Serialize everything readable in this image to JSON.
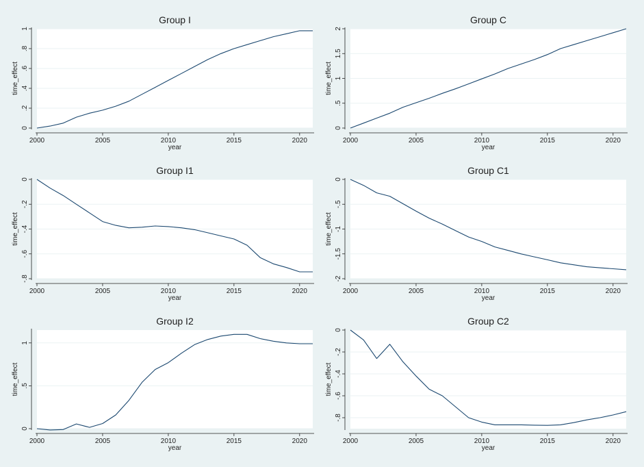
{
  "chart_data": [
    {
      "type": "line",
      "title": "Group I",
      "xlabel": "year",
      "ylabel": "time_effect",
      "xlim": [
        2000,
        2021
      ],
      "ylim": [
        0,
        1
      ],
      "xticks": [
        2000,
        2005,
        2010,
        2015,
        2020
      ],
      "xtick_labels": [
        "2000",
        "2005",
        "2010",
        "2015",
        "2020"
      ],
      "yticks": [
        0,
        0.2,
        0.4,
        0.6,
        0.8,
        1
      ],
      "ytick_labels": [
        "0",
        ".2",
        ".4",
        ".6",
        ".8",
        "1"
      ],
      "grid": true,
      "x": [
        2000,
        2001,
        2002,
        2003,
        2004,
        2005,
        2006,
        2007,
        2008,
        2009,
        2010,
        2011,
        2012,
        2013,
        2014,
        2015,
        2016,
        2017,
        2018,
        2019,
        2020,
        2021
      ],
      "series": [
        {
          "values": [
            0,
            0.02,
            0.05,
            0.11,
            0.15,
            0.18,
            0.22,
            0.27,
            0.34,
            0.41,
            0.48,
            0.55,
            0.62,
            0.69,
            0.75,
            0.8,
            0.84,
            0.88,
            0.92,
            0.95,
            0.98,
            0.98
          ]
        }
      ]
    },
    {
      "type": "line",
      "title": "Group C",
      "xlabel": "year",
      "ylabel": "time_effect",
      "xlim": [
        2000,
        2021
      ],
      "ylim": [
        0,
        2
      ],
      "xticks": [
        2000,
        2005,
        2010,
        2015,
        2020
      ],
      "xtick_labels": [
        "2000",
        "2005",
        "2010",
        "2015",
        "2020"
      ],
      "yticks": [
        0,
        0.5,
        1,
        1.5,
        2
      ],
      "ytick_labels": [
        "0",
        ".5",
        "1",
        "1.5",
        "2"
      ],
      "grid": true,
      "x": [
        2000,
        2001,
        2002,
        2003,
        2004,
        2005,
        2006,
        2007,
        2008,
        2009,
        2010,
        2011,
        2012,
        2013,
        2014,
        2015,
        2016,
        2017,
        2018,
        2019,
        2020,
        2021
      ],
      "series": [
        {
          "values": [
            0,
            0.1,
            0.2,
            0.3,
            0.42,
            0.51,
            0.6,
            0.7,
            0.79,
            0.89,
            0.99,
            1.09,
            1.2,
            1.29,
            1.38,
            1.48,
            1.6,
            1.68,
            1.76,
            1.84,
            1.92,
            2.0
          ]
        }
      ]
    },
    {
      "type": "line",
      "title": "Group I1",
      "xlabel": "year",
      "ylabel": "time_effect",
      "xlim": [
        2000,
        2021
      ],
      "ylim": [
        -0.8,
        0
      ],
      "xticks": [
        2000,
        2005,
        2010,
        2015,
        2020
      ],
      "xtick_labels": [
        "2000",
        "2005",
        "2010",
        "2015",
        "2020"
      ],
      "yticks": [
        -0.8,
        -0.6,
        -0.4,
        -0.2,
        0
      ],
      "ytick_labels": [
        "-.8",
        "-.6",
        "-.4",
        "-.2",
        "0"
      ],
      "grid": true,
      "x": [
        2000,
        2001,
        2002,
        2003,
        2004,
        2005,
        2006,
        2007,
        2008,
        2009,
        2010,
        2011,
        2012,
        2013,
        2014,
        2015,
        2016,
        2017,
        2018,
        2019,
        2020,
        2021
      ],
      "series": [
        {
          "values": [
            0,
            -0.07,
            -0.13,
            -0.2,
            -0.27,
            -0.34,
            -0.37,
            -0.39,
            -0.385,
            -0.375,
            -0.38,
            -0.39,
            -0.405,
            -0.43,
            -0.455,
            -0.48,
            -0.53,
            -0.63,
            -0.68,
            -0.71,
            -0.745,
            -0.745
          ]
        }
      ]
    },
    {
      "type": "line",
      "title": "Group C1",
      "xlabel": "year",
      "ylabel": "time_effect",
      "xlim": [
        2000,
        2021
      ],
      "ylim": [
        -2,
        0
      ],
      "xticks": [
        2000,
        2005,
        2010,
        2015,
        2020
      ],
      "xtick_labels": [
        "2000",
        "2005",
        "2010",
        "2015",
        "2020"
      ],
      "yticks": [
        -2,
        -1.5,
        -1,
        -0.5,
        0
      ],
      "ytick_labels": [
        "-2",
        "-1.5",
        "-1",
        "-.5",
        "0"
      ],
      "grid": true,
      "x": [
        2000,
        2001,
        2002,
        2003,
        2004,
        2005,
        2006,
        2007,
        2008,
        2009,
        2010,
        2011,
        2012,
        2013,
        2014,
        2015,
        2016,
        2017,
        2018,
        2019,
        2020,
        2021
      ],
      "series": [
        {
          "values": [
            0,
            -0.12,
            -0.27,
            -0.34,
            -0.49,
            -0.64,
            -0.78,
            -0.9,
            -1.03,
            -1.16,
            -1.25,
            -1.36,
            -1.43,
            -1.5,
            -1.56,
            -1.62,
            -1.68,
            -1.72,
            -1.76,
            -1.78,
            -1.8,
            -1.82
          ]
        }
      ]
    },
    {
      "type": "line",
      "title": "Group I2",
      "xlabel": "year",
      "ylabel": "time_effect",
      "xlim": [
        2000,
        2021
      ],
      "ylim": [
        0,
        1.15
      ],
      "xticks": [
        2000,
        2005,
        2010,
        2015,
        2020
      ],
      "xtick_labels": [
        "2000",
        "2005",
        "2010",
        "2015",
        "2020"
      ],
      "yticks": [
        0,
        0.5,
        1
      ],
      "ytick_labels": [
        "0",
        ".5",
        "1"
      ],
      "grid": true,
      "x": [
        2000,
        2001,
        2002,
        2003,
        2004,
        2005,
        2006,
        2007,
        2008,
        2009,
        2010,
        2011,
        2012,
        2013,
        2014,
        2015,
        2016,
        2017,
        2018,
        2019,
        2020,
        2021
      ],
      "series": [
        {
          "values": [
            0,
            -0.015,
            -0.01,
            0.055,
            0.015,
            0.06,
            0.16,
            0.33,
            0.54,
            0.69,
            0.77,
            0.88,
            0.98,
            1.04,
            1.08,
            1.1,
            1.1,
            1.05,
            1.02,
            1.0,
            0.99,
            0.99
          ]
        }
      ]
    },
    {
      "type": "line",
      "title": "Group C2",
      "xlabel": "year",
      "ylabel": "time_effect",
      "xlim": [
        2000,
        2021
      ],
      "ylim": [
        -0.9,
        0
      ],
      "xticks": [
        2000,
        2005,
        2010,
        2015,
        2020
      ],
      "xtick_labels": [
        "2000",
        "2005",
        "2010",
        "2015",
        "2020"
      ],
      "yticks": [
        -0.8,
        -0.6,
        -0.4,
        -0.2,
        0
      ],
      "ytick_labels": [
        "-.8",
        "-.6",
        "-.4",
        "-.2",
        "0"
      ],
      "grid": true,
      "x": [
        2000,
        2001,
        2002,
        2003,
        2004,
        2005,
        2006,
        2007,
        2008,
        2009,
        2010,
        2011,
        2012,
        2013,
        2014,
        2015,
        2016,
        2017,
        2018,
        2019,
        2020,
        2021
      ],
      "series": [
        {
          "values": [
            0,
            -0.09,
            -0.26,
            -0.13,
            -0.29,
            -0.42,
            -0.54,
            -0.6,
            -0.7,
            -0.8,
            -0.84,
            -0.865,
            -0.865,
            -0.865,
            -0.868,
            -0.87,
            -0.865,
            -0.845,
            -0.82,
            -0.8,
            -0.775,
            -0.745
          ]
        }
      ]
    }
  ],
  "colors": {
    "background": "#eaf2f3",
    "plot_area": "#ffffff",
    "line": "#1a476f",
    "gridline": "#eaf2f3"
  }
}
